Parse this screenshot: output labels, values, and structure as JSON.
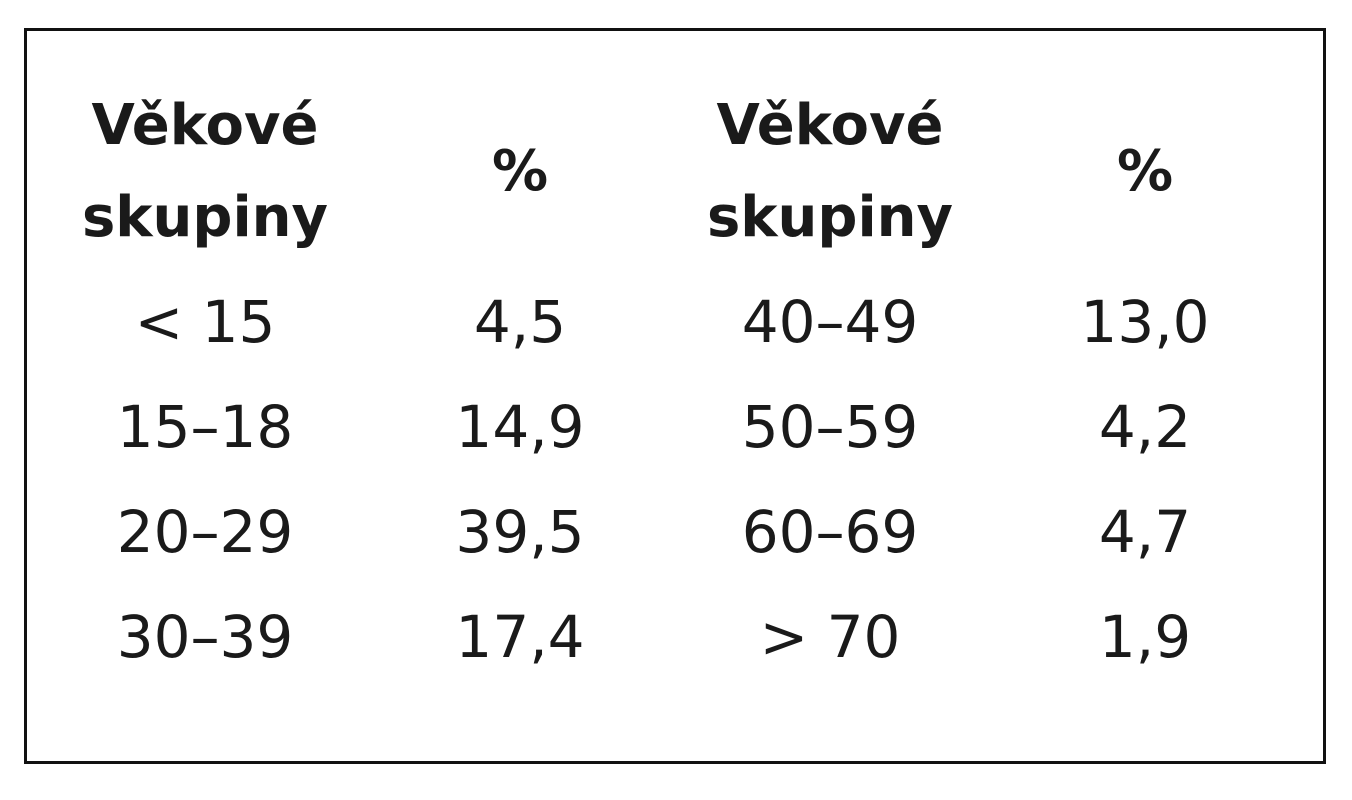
{
  "table": {
    "header": [
      [
        "Věkové",
        "skupiny"
      ],
      [
        "%"
      ],
      [
        "Věkové",
        "skupiny"
      ],
      [
        "%"
      ]
    ],
    "rows": [
      [
        "< 15",
        "4,5",
        "40–49",
        "13,0"
      ],
      [
        "15–18",
        "14,9",
        "50–59",
        "4,2"
      ],
      [
        "20–29",
        "39,5",
        "60–69",
        "4,7"
      ],
      [
        "30–39",
        "17,4",
        "> 70",
        "1,9"
      ]
    ]
  }
}
